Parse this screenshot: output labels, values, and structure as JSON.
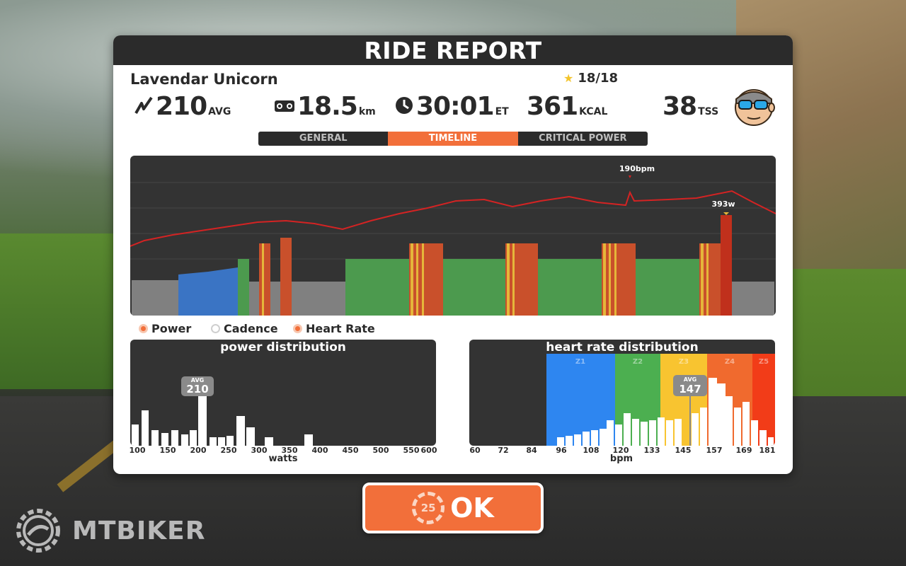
{
  "header": {
    "title": "RIDE REPORT"
  },
  "rider": {
    "name": "Lavendar Unicorn",
    "stars": "18/18"
  },
  "stats": {
    "power": {
      "value": "210",
      "unit": "AVG",
      "icon": "power-icon"
    },
    "distance": {
      "value": "18.5",
      "unit": "km",
      "icon": "bike-icon"
    },
    "time": {
      "value": "30:01",
      "unit": "ET",
      "icon": "clock-icon"
    },
    "calories": {
      "value": "361",
      "unit": "KCAL"
    },
    "tss": {
      "value": "38",
      "unit": "TSS"
    }
  },
  "tabs": [
    {
      "label": "GENERAL",
      "active": false
    },
    {
      "label": "TIMELINE",
      "active": true
    },
    {
      "label": "CRITICAL POWER",
      "active": false
    }
  ],
  "timeline": {
    "max_hr_label": "190bpm",
    "max_power_label": "393w",
    "zone_colors": {
      "z1": "#808080",
      "z2": "#3a74c4",
      "z3": "#4c9a4e",
      "z4": "#e5b63a",
      "z5": "#c9502b",
      "hr": "#d42323"
    }
  },
  "legend": [
    {
      "label": "Power",
      "on": true
    },
    {
      "label": "Cadence",
      "on": false
    },
    {
      "label": "Heart Rate",
      "on": true
    }
  ],
  "power_distribution": {
    "title": "power distribution",
    "avg_label": "AVG",
    "avg_value": "210",
    "x_ticks": [
      "100",
      "150",
      "200",
      "250",
      "300",
      "350",
      "400",
      "450",
      "500",
      "550",
      "600"
    ],
    "x_title": "watts"
  },
  "hr_distribution": {
    "title": "heart rate distribution",
    "avg_label": "AVG",
    "avg_value": "147",
    "zones": [
      "Z1",
      "Z2",
      "Z3",
      "Z4",
      "Z5"
    ],
    "zone_colors": [
      "#2e86f0",
      "#4caf50",
      "#f8c430",
      "#f06a2e",
      "#f23c18"
    ],
    "x_ticks": [
      "60",
      "72",
      "84",
      "96",
      "108",
      "120",
      "133",
      "145",
      "157",
      "169",
      "181"
    ],
    "x_title": "bpm"
  },
  "ok_button": {
    "label": "OK",
    "countdown": "25"
  },
  "watermark": {
    "text": "MTBIKER"
  }
}
